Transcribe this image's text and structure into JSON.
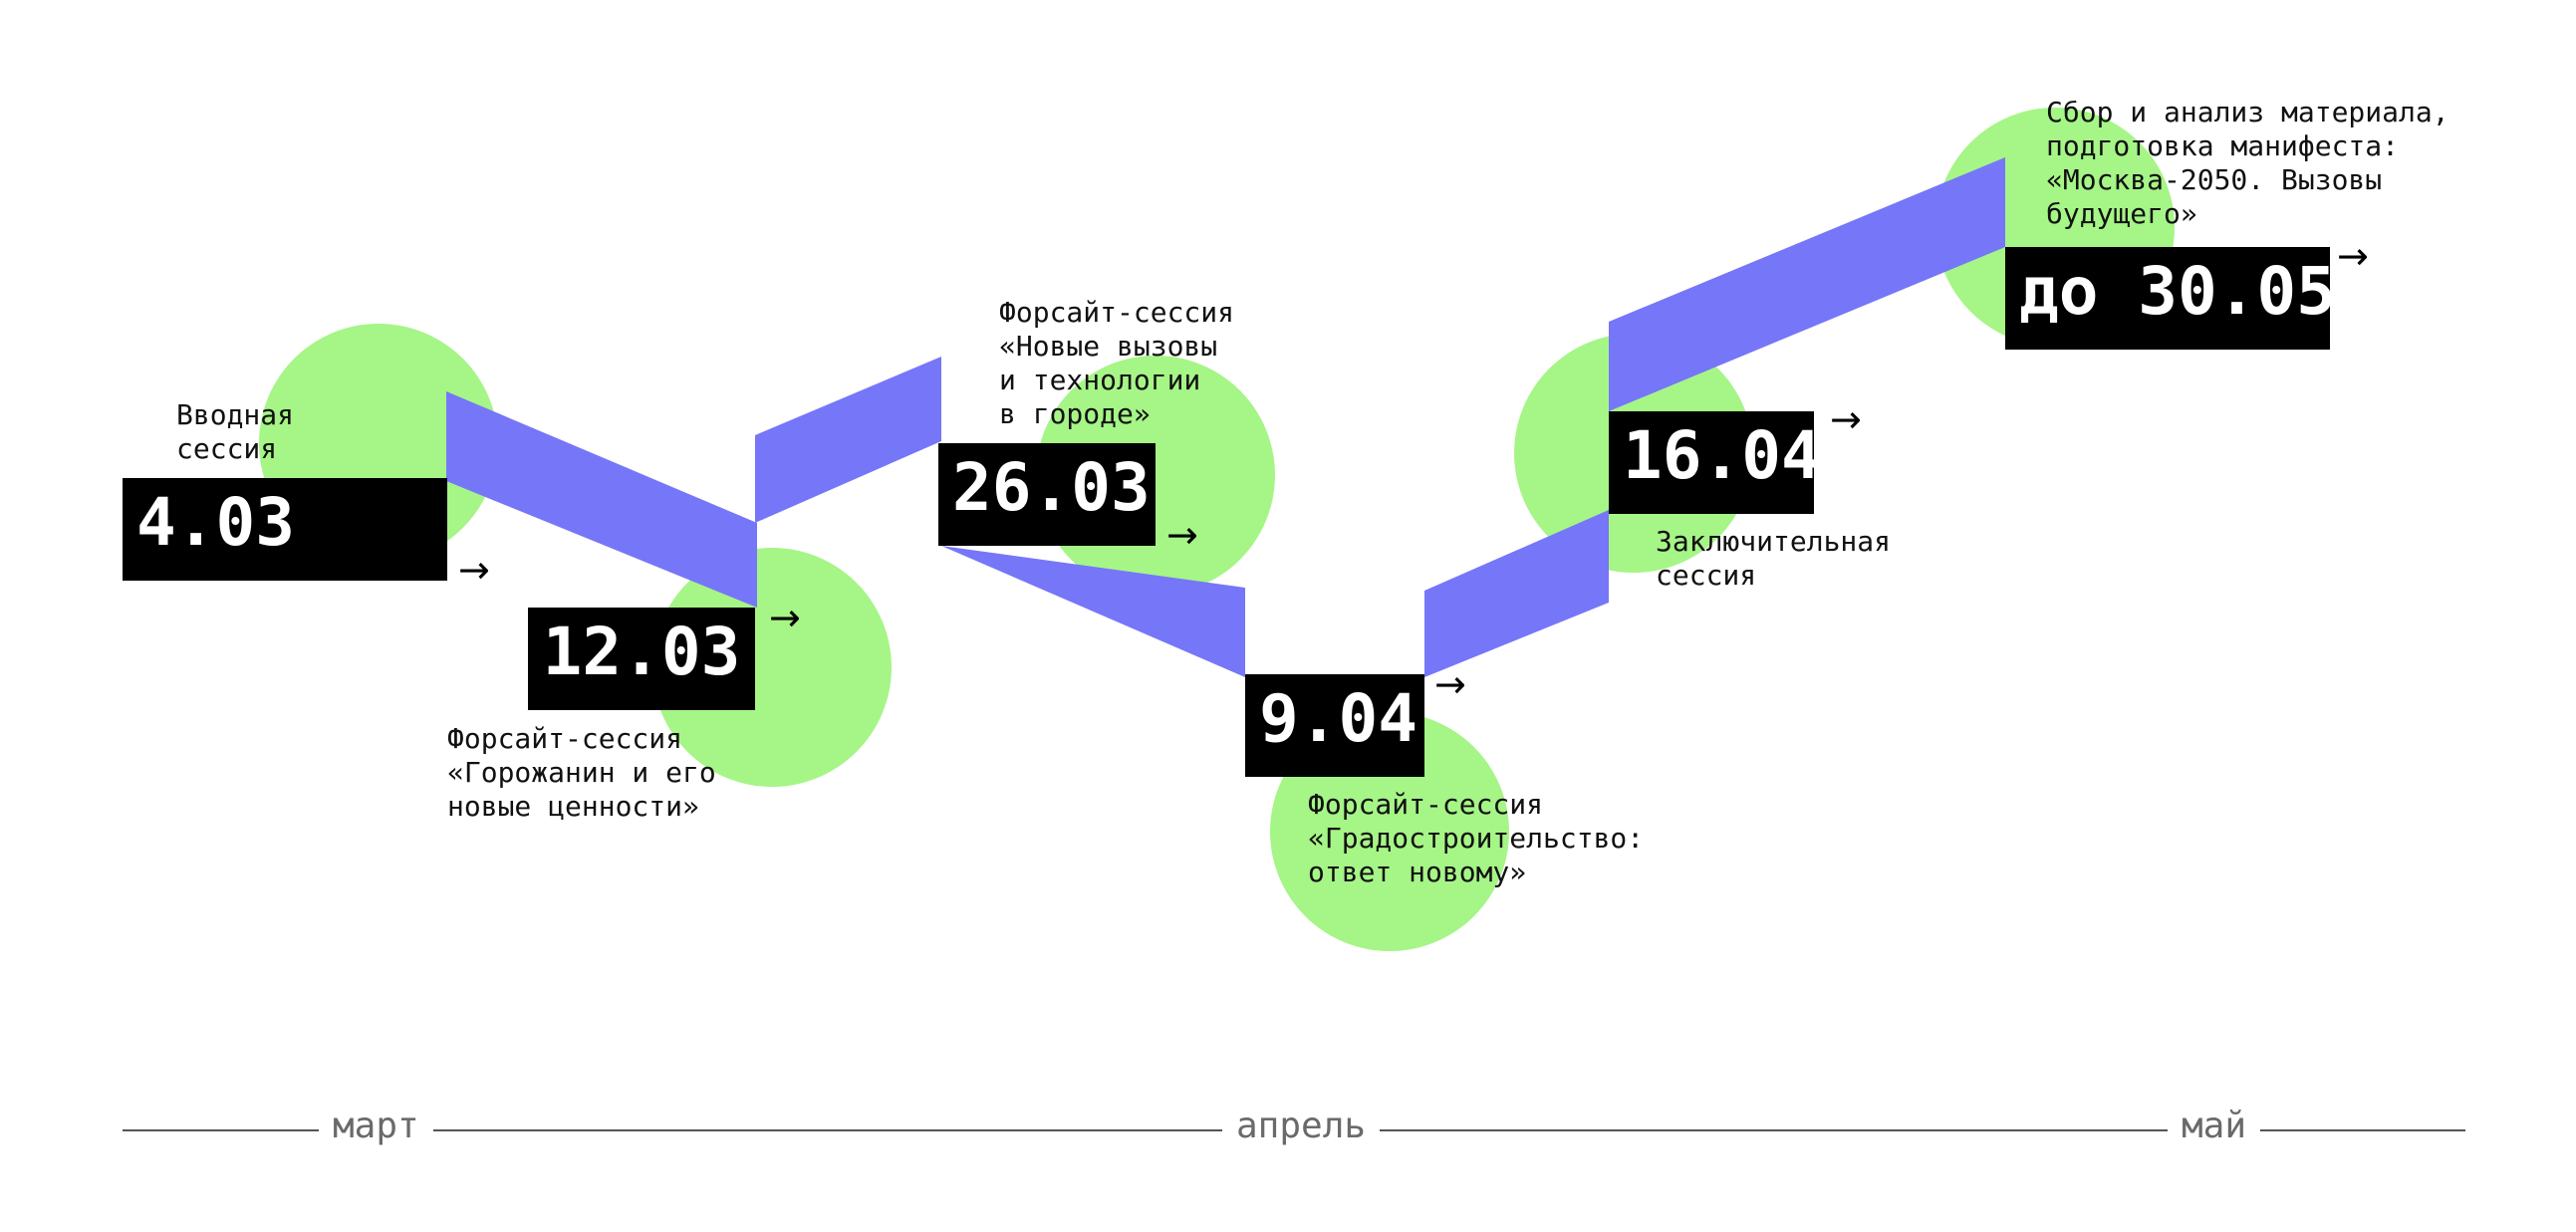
{
  "colors": {
    "circle": "#a6f587",
    "ribbon": "#7676f8",
    "box": "#000000",
    "box_text": "#ffffff",
    "label_text": "#111111",
    "month_text": "#6a6a6a",
    "axis_line": "#555555"
  },
  "events": [
    {
      "date": "4.03",
      "label": "Вводная\nсессия"
    },
    {
      "date": "12.03",
      "label": "Форсайт-сессия\n«Горожанин и его\nновые ценности»"
    },
    {
      "date": "26.03",
      "label": "Форсайт-сессия\n«Новые вызовы\nи технологии\nв городе»"
    },
    {
      "date": "9.04",
      "label": "Форсайт-сессия\n«Градостроительство:\nответ новому»"
    },
    {
      "date": "16.04",
      "label": "Заключительная\nсессия"
    },
    {
      "date": "до 30.05",
      "label": "Сбор и анализ материала,\nподготовка манифеста:\n«Москва-2050. Вызовы\nбудущего»"
    }
  ],
  "arrow_glyph": "→",
  "months": [
    "март",
    "апрель",
    "май"
  ]
}
